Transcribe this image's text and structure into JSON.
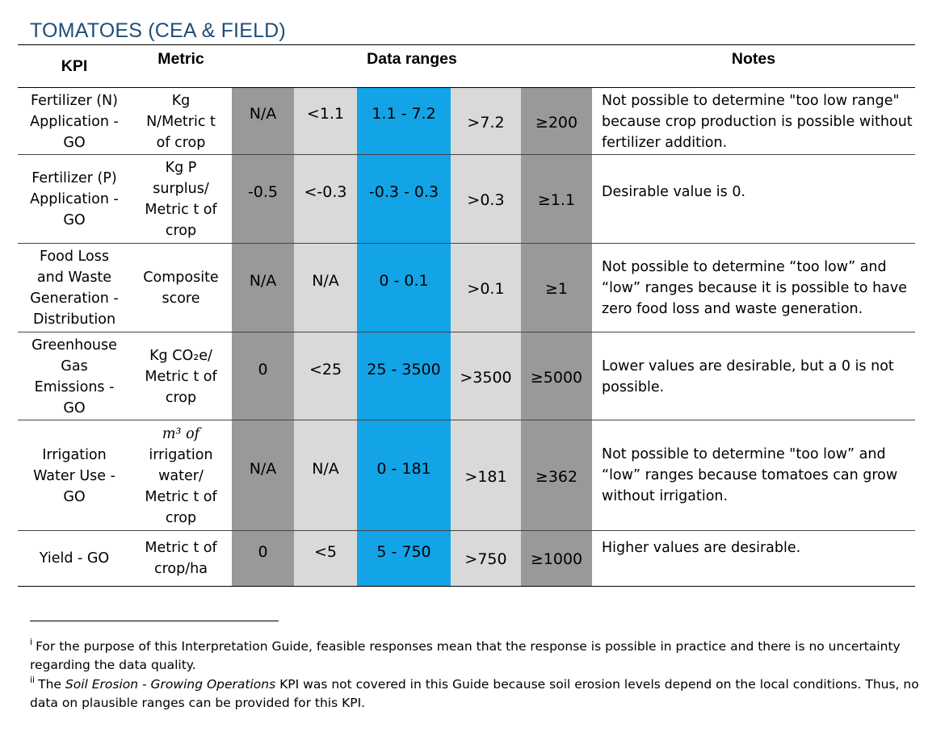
{
  "title": "TOMATOES (CEA & FIELD)",
  "headers": {
    "kpi": "KPI",
    "metric": "Metric",
    "ranges": "Data ranges",
    "notes": "Notes"
  },
  "colors": {
    "dark": "#999999",
    "light": "#d9d9d9",
    "blue": "#12a4e6",
    "title": "#1f4e79"
  },
  "rows": [
    {
      "kpi": [
        "Fertilizer (N)",
        "Application -",
        "GO"
      ],
      "metric": [
        "Kg",
        "N/Metric t",
        "of crop"
      ],
      "ranges": [
        "N/A",
        "<1.1",
        "1.1 - 7.2",
        ">7.2",
        "≥200"
      ],
      "notes": "Not possible to determine \"too low range\" because crop production is possible without fertilizer addition."
    },
    {
      "kpi": [
        "Fertilizer (P)",
        "Application -",
        "GO"
      ],
      "metric": [
        "Kg P",
        "surplus/",
        "Metric t of",
        "crop"
      ],
      "ranges": [
        "-0.5",
        "<-0.3",
        "-0.3 - 0.3",
        ">0.3",
        "≥1.1"
      ],
      "notes": "Desirable value is 0."
    },
    {
      "kpi": [
        "Food Loss",
        "and Waste",
        "Generation -",
        "Distribution"
      ],
      "metric": [
        "Composite",
        "score"
      ],
      "ranges": [
        "N/A",
        "N/A",
        "0 - 0.1",
        ">0.1",
        "≥1"
      ],
      "notes": "Not possible to determine “too low” and “low” ranges because it is possible to have zero food loss and waste generation."
    },
    {
      "kpi": [
        "Greenhouse",
        "Gas",
        "Emissions -",
        "GO"
      ],
      "metric": [
        "Kg CO₂e/",
        "Metric t of",
        "crop"
      ],
      "ranges": [
        "0",
        "<25",
        "25 - 3500",
        ">3500",
        "≥5000"
      ],
      "notes": "Lower values are desirable, but a 0 is not possible."
    },
    {
      "kpi": [
        "Irrigation",
        "Water Use -",
        "GO"
      ],
      "metric": [
        "m³ of",
        "irrigation",
        "water/",
        "Metric t of",
        "crop"
      ],
      "ranges": [
        "N/A",
        "N/A",
        "0 - 181",
        ">181",
        "≥362"
      ],
      "notes": "Not possible to determine \"too low” and “low” ranges because tomatoes can grow without irrigation."
    },
    {
      "kpi": [
        "Yield - GO"
      ],
      "metric": [
        "Metric t of",
        "crop/ha"
      ],
      "ranges": [
        "0",
        "<5",
        "5 - 750",
        ">750",
        "≥1000"
      ],
      "notes": "Higher values are desirable."
    }
  ],
  "footnotes": {
    "i": {
      "mark": "i",
      "text": "For the purpose of this Interpretation Guide, feasible responses mean that the response is possible in practice and there is no uncertainty regarding the data quality."
    },
    "ii": {
      "mark": "ii",
      "pre": "The ",
      "italic": "Soil Erosion - Growing Operations",
      "post": " KPI was not covered in this Guide because soil erosion levels depend on the local conditions. Thus, no data on plausible ranges can be provided for this KPI."
    }
  }
}
